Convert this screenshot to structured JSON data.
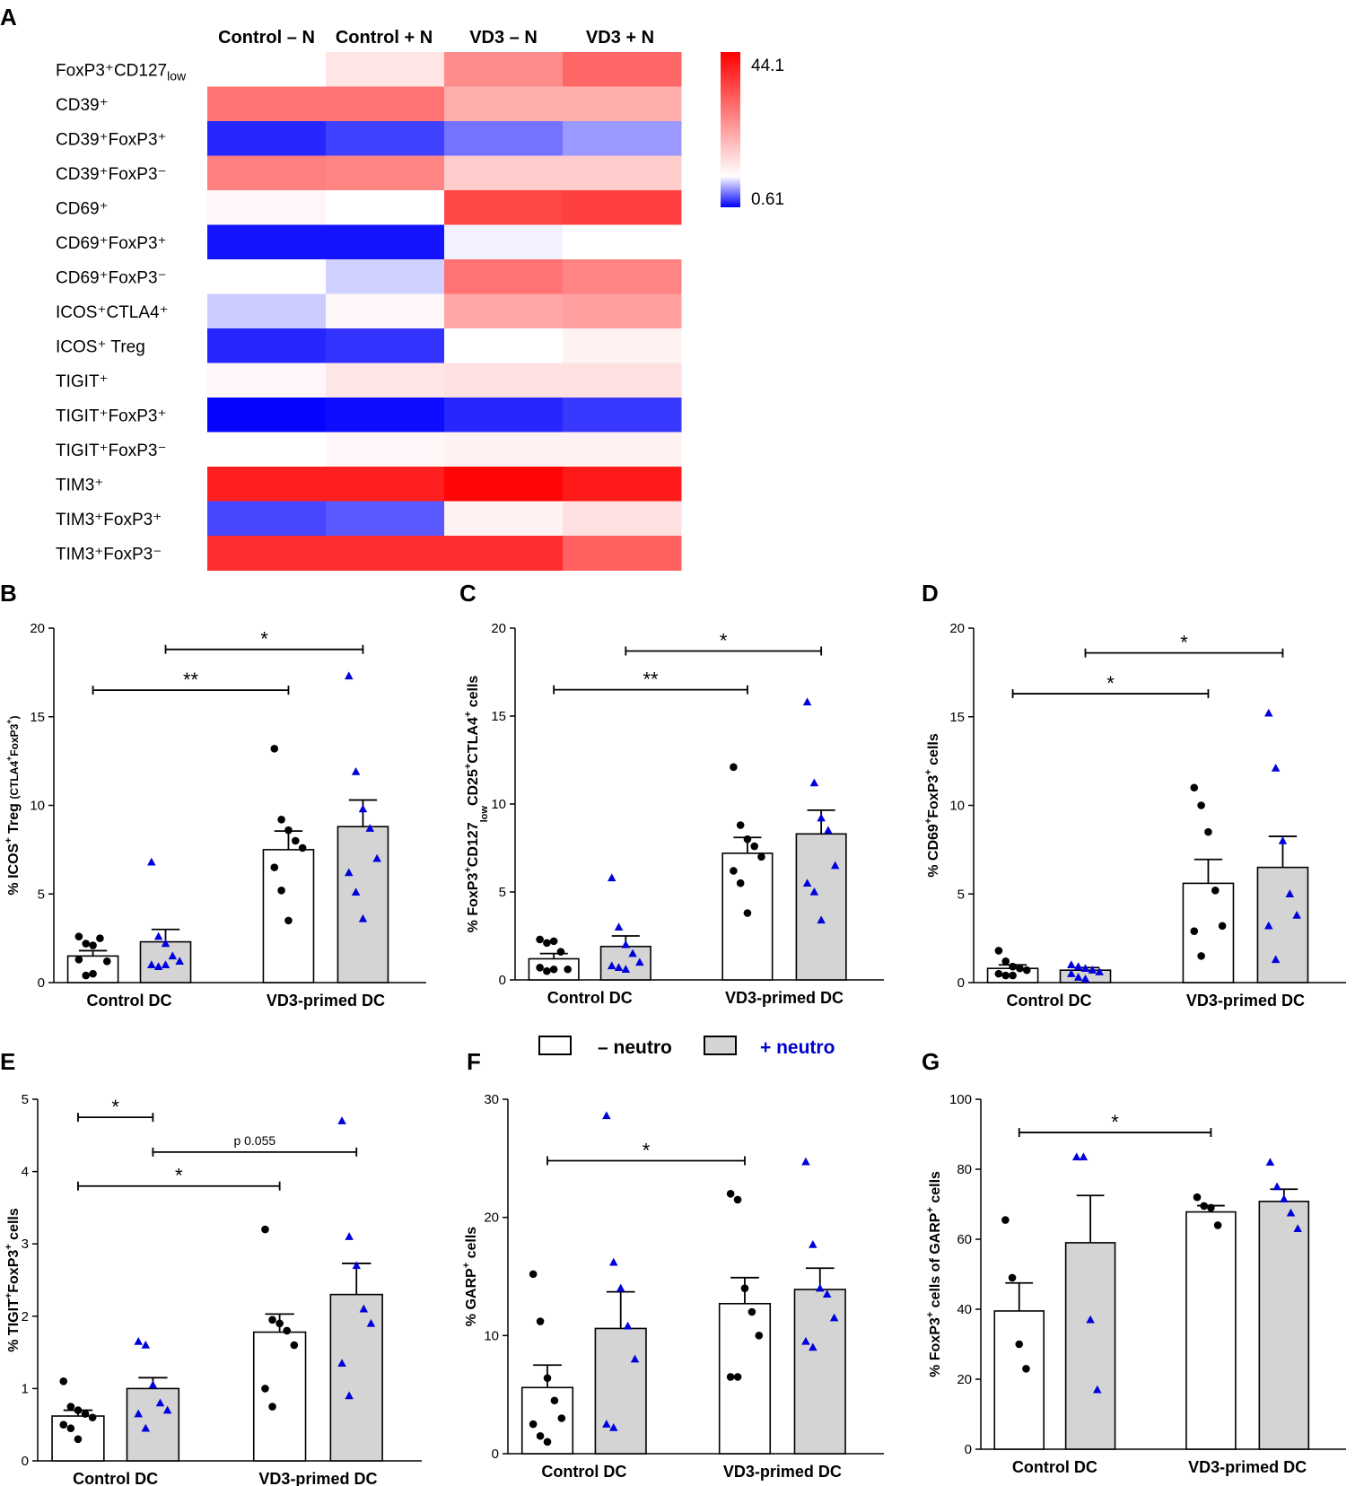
{
  "colors": {
    "blue": "#0000ff",
    "red": "#ff0000",
    "white": "#ffffff",
    "bar_minus": "#ffffff",
    "bar_plus": "#d4d4d4",
    "dot_minus": "#000000",
    "dot_plus": "#0000dd",
    "legend_plus_text": "#0000cc"
  },
  "legend": {
    "minus_label": "– neutro",
    "plus_label": "+ neutro"
  },
  "chart_data": [
    {
      "panel": "A",
      "type": "heatmap",
      "columns": [
        "Control – N",
        "Control + N",
        "VD3 – N",
        "VD3 + N"
      ],
      "rows": [
        {
          "label": "FoxP3⁺CD127",
          "sub": "low"
        },
        {
          "label": "CD39⁺"
        },
        {
          "label": "CD39⁺FoxP3⁺"
        },
        {
          "label": "CD39⁺FoxP3⁻"
        },
        {
          "label": "CD69⁺"
        },
        {
          "label": "CD69⁺FoxP3⁺"
        },
        {
          "label": "CD69⁺FoxP3⁻"
        },
        {
          "label": "ICOS⁺CTLA4⁺"
        },
        {
          "label": "ICOS⁺ Treg"
        },
        {
          "label": "TIGIT⁺"
        },
        {
          "label": "TIGIT⁺FoxP3⁺"
        },
        {
          "label": "TIGIT⁺FoxP3⁻"
        },
        {
          "label": "TIM3⁺"
        },
        {
          "label": "TIM3⁺FoxP3⁺"
        },
        {
          "label": "TIM3⁺FoxP3⁻"
        }
      ],
      "values": [
        [
          0.0,
          0.1,
          0.45,
          0.6
        ],
        [
          0.55,
          0.55,
          0.32,
          0.32
        ],
        [
          -0.85,
          -0.75,
          -0.55,
          -0.4
        ],
        [
          0.5,
          0.48,
          0.2,
          0.2
        ],
        [
          0.03,
          0.0,
          0.72,
          0.75
        ],
        [
          -0.92,
          -0.92,
          -0.05,
          0.0
        ],
        [
          0.0,
          -0.18,
          0.55,
          0.48
        ],
        [
          -0.2,
          0.03,
          0.35,
          0.38
        ],
        [
          -0.85,
          -0.8,
          0.0,
          0.05
        ],
        [
          0.03,
          0.1,
          0.12,
          0.12
        ],
        [
          -0.98,
          -0.95,
          -0.85,
          -0.78
        ],
        [
          0.0,
          0.03,
          0.05,
          0.05
        ],
        [
          0.88,
          0.88,
          0.98,
          0.9
        ],
        [
          -0.72,
          -0.65,
          0.05,
          0.12
        ],
        [
          0.82,
          0.82,
          0.82,
          0.62
        ]
      ],
      "scale": {
        "max_label": "44.1",
        "min_label": "0.61"
      }
    },
    {
      "panel": "B",
      "type": "bar",
      "categories": [
        "Control DC",
        "VD3-primed DC"
      ],
      "ylabel_parts": [
        "% ICOS",
        "+",
        " Treg ",
        "(CTLA4",
        "+",
        "FoxP3",
        "+",
        ")"
      ],
      "ylim": [
        0,
        20
      ],
      "yticks": [
        "0",
        "5",
        "10",
        "15",
        "20"
      ],
      "series": [
        {
          "name": "– neutro",
          "values": [
            1.5,
            7.5
          ],
          "sem": [
            0.3,
            1.05
          ],
          "points": [
            [
              2.6,
              2.2,
              2.1,
              2.5,
              1.2,
              1.3,
              0.4,
              0.5
            ],
            [
              13.2,
              9.2,
              8.6,
              8.0,
              7.6,
              6.5,
              5.2,
              3.5
            ]
          ]
        },
        {
          "name": "+ neutro",
          "values": [
            2.3,
            8.8
          ],
          "sem": [
            0.7,
            1.5
          ],
          "points": [
            [
              6.8,
              2.6,
              2.2,
              1.5,
              1.2,
              1.0,
              0.9,
              1.0
            ],
            [
              17.3,
              11.9,
              9.8,
              8.7,
              7.0,
              6.2,
              5.1,
              3.6
            ]
          ]
        }
      ],
      "brackets": [
        {
          "from": [
            0,
            0
          ],
          "to": [
            1,
            0
          ],
          "y": 16.5,
          "label": "**"
        },
        {
          "from": [
            0,
            1
          ],
          "to": [
            1,
            1
          ],
          "y": 18.8,
          "label": "*"
        }
      ]
    },
    {
      "panel": "C",
      "type": "bar",
      "categories": [
        "Control DC",
        "VD3-primed DC"
      ],
      "ylabel_parts": [
        "% FoxP3",
        "+",
        "CD127",
        "low",
        "CD25",
        "+",
        "CTLA4",
        "+",
        " cells"
      ],
      "ylim": [
        0,
        20
      ],
      "yticks": [
        "0",
        "5",
        "10",
        "15",
        "20"
      ],
      "series": [
        {
          "name": "– neutro",
          "values": [
            1.2,
            7.2
          ],
          "sem": [
            0.3,
            0.9
          ],
          "points": [
            [
              2.3,
              2.1,
              2.2,
              1.6,
              0.6,
              0.7,
              0.5,
              0.6
            ],
            [
              12.1,
              8.8,
              8.0,
              7.6,
              7.0,
              6.2,
              5.5,
              3.8
            ]
          ]
        },
        {
          "name": "+ neutro",
          "values": [
            1.9,
            8.3
          ],
          "sem": [
            0.6,
            1.35
          ],
          "points": [
            [
              5.8,
              3.0,
              2.0,
              1.5,
              1.0,
              0.8,
              0.7,
              0.6
            ],
            [
              15.8,
              11.2,
              9.2,
              8.5,
              6.5,
              5.5,
              5.0,
              3.4
            ]
          ]
        }
      ],
      "brackets": [
        {
          "from": [
            0,
            0
          ],
          "to": [
            1,
            0
          ],
          "y": 16.5,
          "label": "**"
        },
        {
          "from": [
            0,
            1
          ],
          "to": [
            1,
            1
          ],
          "y": 18.7,
          "label": "*"
        }
      ]
    },
    {
      "panel": "D",
      "type": "bar",
      "categories": [
        "Control DC",
        "VD3-primed DC"
      ],
      "ylabel_parts": [
        "% CD69",
        "+",
        "FoxP3",
        "+",
        " cells"
      ],
      "ylim": [
        0,
        20
      ],
      "yticks": [
        "0",
        "5",
        "10",
        "15",
        "20"
      ],
      "series": [
        {
          "name": "– neutro",
          "values": [
            0.8,
            5.6
          ],
          "sem": [
            0.2,
            1.35
          ],
          "points": [
            [
              1.8,
              1.2,
              0.9,
              0.8,
              0.7,
              0.5,
              0.4,
              0.4
            ],
            [
              11.0,
              10.0,
              8.5,
              5.2,
              3.2,
              2.9,
              1.5
            ]
          ]
        },
        {
          "name": "+ neutro",
          "values": [
            0.7,
            6.5
          ],
          "sem": [
            0.15,
            1.75
          ],
          "points": [
            [
              1.0,
              0.9,
              0.8,
              0.7,
              0.6,
              0.5,
              0.3,
              0.2
            ],
            [
              15.2,
              12.1,
              8.0,
              5.0,
              3.8,
              3.2,
              1.3
            ]
          ]
        }
      ],
      "brackets": [
        {
          "from": [
            0,
            0
          ],
          "to": [
            1,
            0
          ],
          "y": 16.3,
          "label": "*"
        },
        {
          "from": [
            0,
            1
          ],
          "to": [
            1,
            1
          ],
          "y": 18.6,
          "label": "*"
        }
      ]
    },
    {
      "panel": "E",
      "type": "bar",
      "categories": [
        "Control DC",
        "VD3-primed DC"
      ],
      "ylabel_parts": [
        "% TIGIT",
        "+",
        "FoxP3",
        "+",
        " cells"
      ],
      "ylim": [
        0,
        5
      ],
      "yticks": [
        "0",
        "1",
        "2",
        "3",
        "4",
        "5"
      ],
      "series": [
        {
          "name": "– neutro",
          "values": [
            0.62,
            1.78
          ],
          "sem": [
            0.08,
            0.25
          ],
          "points": [
            [
              1.1,
              0.75,
              0.7,
              0.65,
              0.6,
              0.5,
              0.45,
              0.3
            ],
            [
              3.2,
              1.95,
              1.9,
              1.8,
              1.6,
              1.0,
              0.75
            ]
          ]
        },
        {
          "name": "+ neutro",
          "values": [
            1.0,
            2.3
          ],
          "sem": [
            0.15,
            0.43
          ],
          "points": [
            [
              1.65,
              1.6,
              1.05,
              0.8,
              0.7,
              0.65,
              0.45
            ],
            [
              4.7,
              3.1,
              2.7,
              2.1,
              1.9,
              1.35,
              0.9
            ]
          ]
        }
      ],
      "brackets": [
        {
          "from": [
            0,
            0
          ],
          "to": [
            0,
            1
          ],
          "y": 4.75,
          "label": "*"
        },
        {
          "from": [
            0,
            1
          ],
          "to": [
            1,
            1
          ],
          "y": 4.27,
          "label": "p 0.055"
        },
        {
          "from": [
            0,
            0
          ],
          "to": [
            1,
            0
          ],
          "y": 3.8,
          "label": "*"
        }
      ]
    },
    {
      "panel": "F",
      "type": "bar",
      "categories": [
        "Control DC",
        "VD3-primed DC"
      ],
      "ylabel_parts": [
        "% GARP",
        "+",
        " cells"
      ],
      "ylim": [
        0,
        30
      ],
      "yticks": [
        "0",
        "10",
        "20",
        "30"
      ],
      "series": [
        {
          "name": "– neutro",
          "values": [
            5.6,
            12.7
          ],
          "sem": [
            1.9,
            2.2
          ],
          "points": [
            [
              15.2,
              11.2,
              6.4,
              4.5,
              3.0,
              2.5,
              1.5,
              1.0
            ],
            [
              22.0,
              21.5,
              14.0,
              12.0,
              10.0,
              6.5,
              6.5
            ]
          ]
        },
        {
          "name": "+ neutro",
          "values": [
            10.6,
            13.9
          ],
          "sem": [
            3.1,
            1.8
          ],
          "points": [
            [
              28.6,
              16.2,
              14.0,
              10.8,
              8.0,
              2.5,
              2.2
            ],
            [
              24.7,
              17.7,
              14.0,
              13.5,
              11.5,
              9.5,
              9.0
            ]
          ]
        }
      ],
      "brackets": [
        {
          "from": [
            0,
            0
          ],
          "to": [
            1,
            0
          ],
          "y": 24.8,
          "label": "*"
        }
      ]
    },
    {
      "panel": "G",
      "type": "bar",
      "categories": [
        "Control DC",
        "VD3-primed DC"
      ],
      "ylabel_parts": [
        "% FoxP3",
        "+",
        " cells of GARP",
        "+",
        " cells"
      ],
      "ylim": [
        0,
        100
      ],
      "yticks": [
        "0",
        "20",
        "40",
        "60",
        "80",
        "100"
      ],
      "series": [
        {
          "name": "– neutro",
          "values": [
            39.5,
            67.8
          ],
          "sem": [
            8.0,
            1.8
          ],
          "points": [
            [
              65.5,
              49.0,
              30.0,
              23.0
            ],
            [
              72.0,
              69.5,
              69.0,
              64.0
            ]
          ]
        },
        {
          "name": "+ neutro",
          "values": [
            59.0,
            70.8
          ],
          "sem": [
            13.5,
            3.5
          ],
          "points": [
            [
              83.5,
              83.5,
              37.0,
              17.0
            ],
            [
              82.0,
              75.0,
              71.5,
              67.5,
              63.0
            ]
          ]
        }
      ],
      "brackets": [
        {
          "from": [
            0,
            0
          ],
          "to": [
            1,
            0
          ],
          "y": 90.5,
          "label": "*"
        }
      ]
    }
  ]
}
